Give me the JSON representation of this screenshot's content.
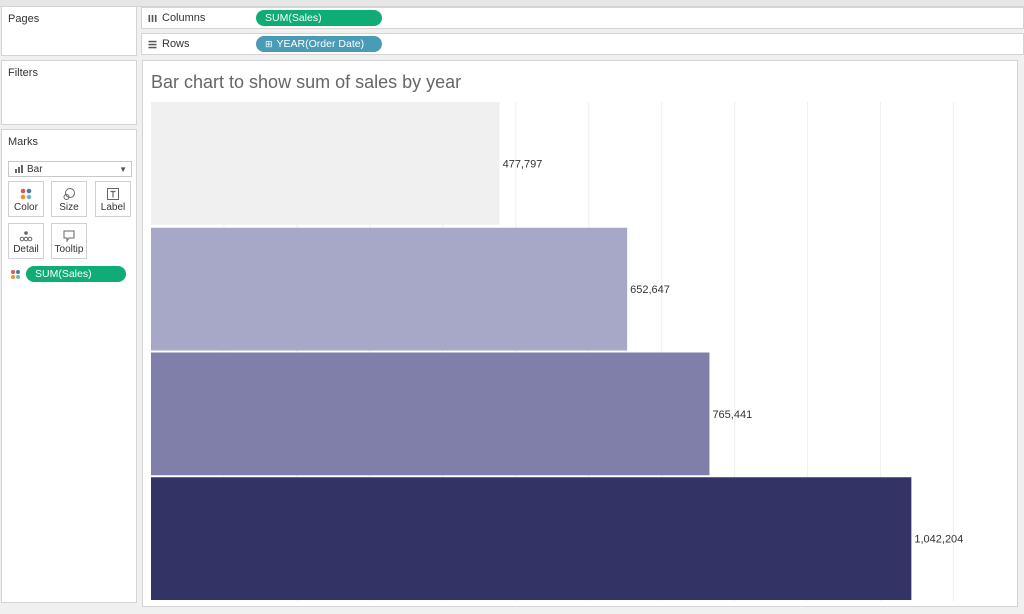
{
  "left_panel": {
    "pages_title": "Pages",
    "filters_title": "Filters",
    "marks_title": "Marks",
    "mark_type": "Bar",
    "buttons": [
      {
        "label": "Color",
        "icon": "color-dots-icon"
      },
      {
        "label": "Size",
        "icon": "size-icon"
      },
      {
        "label": "Label",
        "icon": "label-icon"
      },
      {
        "label": "Detail",
        "icon": "detail-icon"
      },
      {
        "label": "Tooltip",
        "icon": "tooltip-icon"
      }
    ],
    "color_field": "SUM(Sales)"
  },
  "shelves": {
    "columns_label": "Columns",
    "columns_pill": "SUM(Sales)",
    "rows_label": "Rows",
    "rows_pill": "YEAR(Order Date)"
  },
  "colors": {
    "measure_pill": "#0fad75",
    "dimension_pill": "#4a9bb6",
    "bars": [
      "#f0f0f0",
      "#a7a7c8",
      "#807faa",
      "#333366"
    ]
  },
  "chart_data": {
    "type": "bar",
    "orientation": "horizontal",
    "title": "Bar chart to show sum of sales by year",
    "categories": [
      "",
      "",
      "",
      ""
    ],
    "values": [
      477797,
      652647,
      765441,
      1042204
    ],
    "data_labels": [
      "477,797",
      "652,647",
      "765,441",
      "1,042,204"
    ],
    "xlim": [
      0,
      1187000
    ],
    "grid": "vertical"
  }
}
